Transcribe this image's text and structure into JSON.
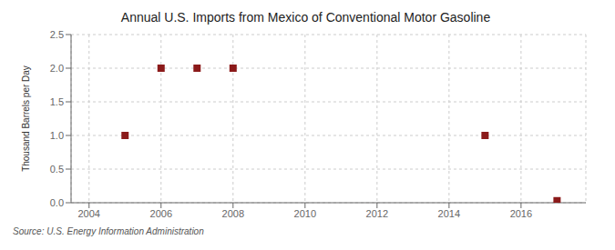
{
  "chart_data": {
    "type": "scatter",
    "title": "Annual U.S. Imports from Mexico of Conventional Motor Gasoline",
    "ylabel": "Thousand Barrels per Day",
    "source": "Source: U.S. Energy Information Administration",
    "x": [
      2005,
      2006,
      2007,
      2008,
      2015,
      2017
    ],
    "values": [
      1.0,
      2.0,
      2.0,
      2.0,
      1.0,
      0.03
    ],
    "color": "#8b1a1a",
    "marker": "square",
    "xlim": [
      2003.5,
      2017.8
    ],
    "ylim": [
      0.0,
      2.5
    ],
    "xticks": [
      2004,
      2006,
      2008,
      2010,
      2012,
      2014,
      2016
    ],
    "yticks": [
      {
        "value": 0,
        "label": "0.0"
      },
      0.5,
      {
        "value": 1,
        "label": "1.0"
      },
      1.5,
      {
        "value": 2,
        "label": "2.0"
      },
      2.5
    ],
    "grid": true
  }
}
